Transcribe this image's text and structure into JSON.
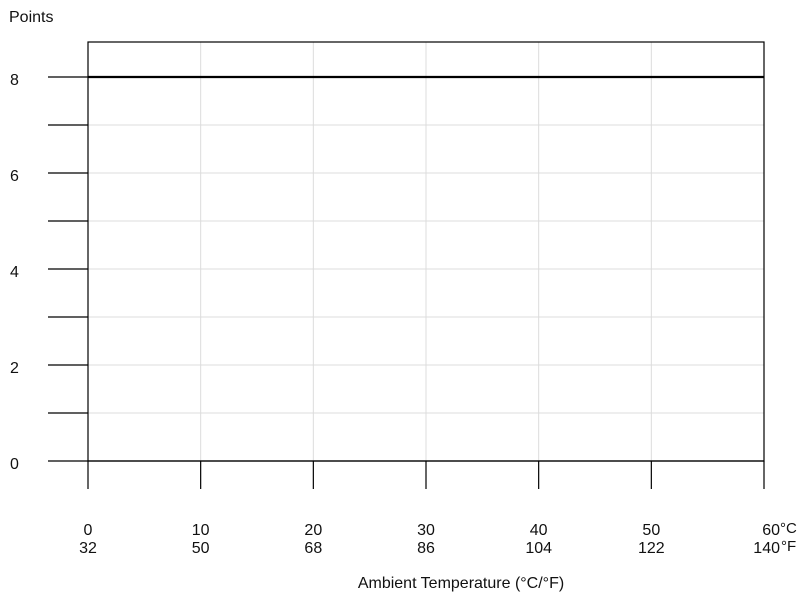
{
  "chart_data": {
    "type": "line",
    "ylabel": "Points",
    "xlabel": "Ambient Temperature (°C/°F)",
    "xlim": [
      0,
      60
    ],
    "ylim": [
      0,
      8
    ],
    "grid": true,
    "x_ticks_c": [
      "0",
      "10",
      "20",
      "30",
      "40",
      "50",
      "60"
    ],
    "x_ticks_f": [
      "32",
      "50",
      "68",
      "86",
      "104",
      "122",
      "140"
    ],
    "x_unit_c": "°C",
    "x_unit_f": "°F",
    "y_ticks": [
      "0",
      "2",
      "4",
      "6",
      "8"
    ],
    "y_tick_values": [
      0,
      2,
      4,
      6,
      8
    ],
    "y_minor_values": [
      1,
      3,
      5,
      7
    ],
    "series": [
      {
        "x": [
          0,
          60
        ],
        "y": [
          8,
          8
        ]
      }
    ]
  }
}
